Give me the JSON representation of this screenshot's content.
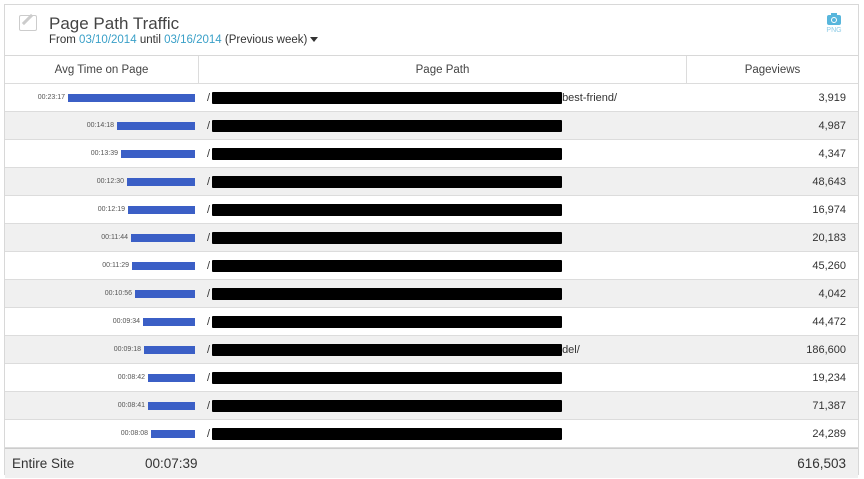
{
  "header": {
    "title": "Page Path Traffic",
    "from_label": "From",
    "start_date": "03/10/2014",
    "until_label": "until",
    "end_date": "03/16/2014",
    "range_label": "(Previous week)",
    "export_label": "PNG",
    "accent": "#3aa0c8"
  },
  "columns": [
    "Avg Time on Page",
    "Page Path",
    "Pageviews"
  ],
  "bar_color": "#3b5fc6",
  "rows": [
    {
      "time": "00:23:17",
      "path_prefix": "/",
      "path_suffix": "best-friend/",
      "pageviews": "3,919"
    },
    {
      "time": "00:14:18",
      "path_prefix": "/",
      "path_suffix": "",
      "pageviews": "4,987"
    },
    {
      "time": "00:13:39",
      "path_prefix": "/",
      "path_suffix": "",
      "pageviews": "4,347"
    },
    {
      "time": "00:12:30",
      "path_prefix": "/",
      "path_suffix": "",
      "pageviews": "48,643"
    },
    {
      "time": "00:12:19",
      "path_prefix": "/",
      "path_suffix": "",
      "pageviews": "16,974"
    },
    {
      "time": "00:11:44",
      "path_prefix": "/",
      "path_suffix": "",
      "pageviews": "20,183"
    },
    {
      "time": "00:11:29",
      "path_prefix": "/",
      "path_suffix": "",
      "pageviews": "45,260"
    },
    {
      "time": "00:10:56",
      "path_prefix": "/",
      "path_suffix": "",
      "pageviews": "4,042"
    },
    {
      "time": "00:09:34",
      "path_prefix": "/",
      "path_suffix": "",
      "pageviews": "44,472"
    },
    {
      "time": "00:09:18",
      "path_prefix": "/",
      "path_suffix": "del/",
      "pageviews": "186,600"
    },
    {
      "time": "00:08:42",
      "path_prefix": "/",
      "path_suffix": "",
      "pageviews": "19,234"
    },
    {
      "time": "00:08:41",
      "path_prefix": "/",
      "path_suffix": "",
      "pageviews": "71,387"
    },
    {
      "time": "00:08:08",
      "path_prefix": "/",
      "path_suffix": "",
      "pageviews": "24,289"
    }
  ],
  "footer": {
    "label": "Entire Site",
    "time": "00:07:39",
    "pageviews": "616,503"
  }
}
